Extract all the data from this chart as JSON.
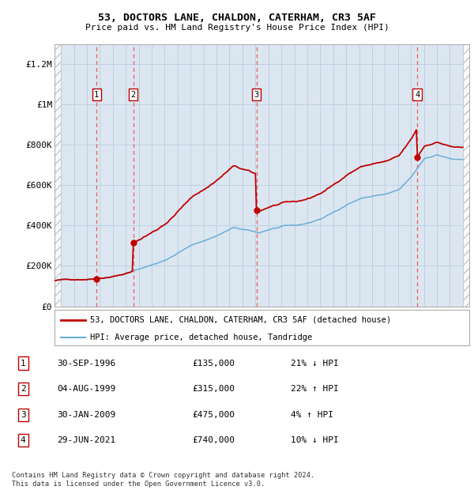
{
  "title": "53, DOCTORS LANE, CHALDON, CATERHAM, CR3 5AF",
  "subtitle": "Price paid vs. HM Land Registry's House Price Index (HPI)",
  "sales": [
    {
      "date": 1996.75,
      "price": 135000,
      "label": "1"
    },
    {
      "date": 1999.58,
      "price": 315000,
      "label": "2"
    },
    {
      "date": 2009.08,
      "price": 475000,
      "label": "3"
    },
    {
      "date": 2021.49,
      "price": 740000,
      "label": "4"
    }
  ],
  "sale_annotations": [
    {
      "num": "1",
      "date": "30-SEP-1996",
      "price": "£135,000",
      "pct": "21% ↓ HPI"
    },
    {
      "num": "2",
      "date": "04-AUG-1999",
      "price": "£315,000",
      "pct": "22% ↑ HPI"
    },
    {
      "num": "3",
      "date": "30-JAN-2009",
      "price": "£475,000",
      "pct": "4% ↑ HPI"
    },
    {
      "num": "4",
      "date": "29-JUN-2021",
      "price": "£740,000",
      "pct": "10% ↓ HPI"
    }
  ],
  "hpi_line_color": "#6aaed6",
  "sale_line_color": "#c00000",
  "sale_dot_color": "#c00000",
  "sale_label_color": "#c00000",
  "dashed_line_color": "#e06060",
  "ylim": [
    0,
    1300000
  ],
  "yticks": [
    0,
    200000,
    400000,
    600000,
    800000,
    1000000,
    1200000
  ],
  "ytick_labels": [
    "£0",
    "£200K",
    "£400K",
    "£600K",
    "£800K",
    "£1M",
    "£1.2M"
  ],
  "xlim_start": 1993.5,
  "xlim_end": 2025.5,
  "xticks": [
    1994,
    1995,
    1996,
    1997,
    1998,
    1999,
    2000,
    2001,
    2002,
    2003,
    2004,
    2005,
    2006,
    2007,
    2008,
    2009,
    2010,
    2011,
    2012,
    2013,
    2014,
    2015,
    2016,
    2017,
    2018,
    2019,
    2020,
    2021,
    2022,
    2023,
    2024,
    2025
  ],
  "legend_entries": [
    {
      "label": "53, DOCTORS LANE, CHALDON, CATERHAM, CR3 5AF (detached house)",
      "color": "#c00000",
      "lw": 2.0
    },
    {
      "label": "HPI: Average price, detached house, Tandridge",
      "color": "#6aaed6",
      "lw": 1.5
    }
  ],
  "footer": "Contains HM Land Registry data © Crown copyright and database right 2024.\nThis data is licensed under the Open Government Licence v3.0.",
  "grid_color": "#b8cfe0",
  "bg_color": "#dce6f1"
}
